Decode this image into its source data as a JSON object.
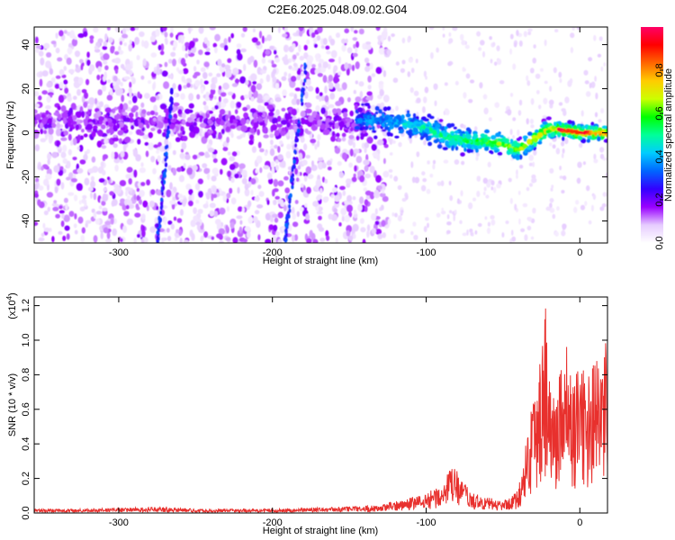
{
  "title": "C2E6.2025.048.09.02.G04",
  "chart_data": [
    {
      "type": "heatmap",
      "xlabel": "Height of straight line (km)",
      "ylabel": "Frequency (Hz)",
      "xlim": [
        -355,
        18
      ],
      "ylim": [
        -50,
        48
      ],
      "x_ticks": [
        -300,
        -200,
        -100,
        0
      ],
      "y_ticks": [
        -40,
        -20,
        0,
        20,
        40
      ],
      "colorbar": {
        "label": "Normalized spectral amplitude",
        "range": [
          0,
          1
        ],
        "ticks": [
          0.0,
          0.2,
          0.4,
          0.6,
          0.8
        ],
        "colors": [
          "#ffffff",
          "#e6ccff",
          "#9900ff",
          "#3300ff",
          "#0066ff",
          "#00ccff",
          "#00ff99",
          "#00ff00",
          "#ccff00",
          "#ffcc00",
          "#ff6600",
          "#ff0000",
          "#ff0066"
        ]
      },
      "ridge": {
        "x": [
          -140,
          -120,
          -100,
          -90,
          -80,
          -70,
          -60,
          -50,
          -40,
          -30,
          -20,
          -10,
          0,
          10,
          18
        ],
        "y": [
          6,
          5,
          2,
          -1,
          -3,
          -4,
          -4,
          -5,
          -8,
          -3,
          2,
          1,
          0,
          0,
          0
        ]
      },
      "streaks": [
        {
          "x": [
            -275,
            -265
          ],
          "y": [
            -50,
            20
          ]
        },
        {
          "x": [
            -192,
            -178
          ],
          "y": [
            -50,
            32
          ]
        }
      ]
    },
    {
      "type": "line",
      "xlabel": "Height of straight line (km)",
      "ylabel": "SNR (10 * v/v)",
      "y_scale_label": "(x10",
      "y_scale_exponent": "4",
      "xlim": [
        -355,
        18
      ],
      "ylim": [
        0,
        1.25
      ],
      "x_ticks": [
        -300,
        -200,
        -100,
        0
      ],
      "y_ticks": [
        0.0,
        0.2,
        0.4,
        0.6,
        0.8,
        1.0,
        1.2
      ],
      "color": "#e8302d",
      "series": [
        {
          "x": [
            -355,
            -330,
            -300,
            -270,
            -250,
            -220,
            -200,
            -160,
            -130,
            -120,
            -110,
            -100,
            -90,
            -82,
            -78,
            -70,
            -60,
            -50,
            -40,
            -36,
            -32,
            -30,
            -25,
            -22,
            -20,
            -15,
            -10,
            -5,
            0,
            5,
            10,
            15,
            18
          ],
          "y": [
            0.02,
            0.02,
            0.025,
            0.03,
            0.02,
            0.02,
            0.02,
            0.03,
            0.04,
            0.06,
            0.08,
            0.1,
            0.15,
            0.25,
            0.18,
            0.1,
            0.08,
            0.06,
            0.12,
            0.3,
            0.55,
            0.65,
            0.85,
            1.1,
            0.7,
            0.6,
            0.95,
            0.65,
            0.75,
            0.7,
            0.8,
            0.72,
            0.95
          ]
        }
      ]
    }
  ]
}
